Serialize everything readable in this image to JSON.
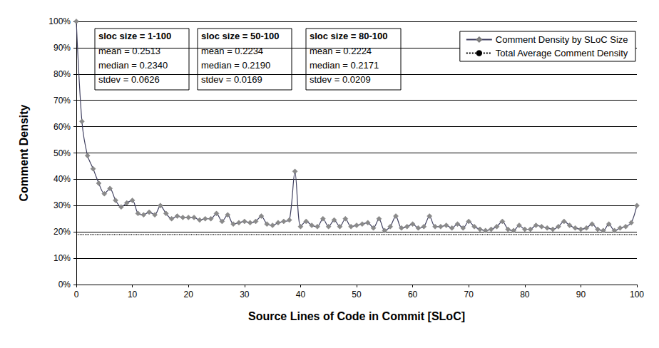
{
  "chart_data": {
    "type": "line",
    "x_label": "Source Lines of Code in Commit [SLoC]",
    "y_label": "Comment Density",
    "x": [
      0,
      1,
      2,
      3,
      4,
      5,
      6,
      7,
      8,
      9,
      10,
      11,
      12,
      13,
      14,
      15,
      16,
      17,
      18,
      19,
      20,
      21,
      22,
      23,
      24,
      25,
      26,
      27,
      28,
      29,
      30,
      31,
      32,
      33,
      34,
      35,
      36,
      37,
      38,
      39,
      40,
      41,
      42,
      43,
      44,
      45,
      46,
      47,
      48,
      49,
      50,
      51,
      52,
      53,
      54,
      55,
      56,
      57,
      58,
      59,
      60,
      61,
      62,
      63,
      64,
      65,
      66,
      67,
      68,
      69,
      70,
      71,
      72,
      73,
      74,
      75,
      76,
      77,
      78,
      79,
      80,
      81,
      82,
      83,
      84,
      85,
      86,
      87,
      88,
      89,
      90,
      91,
      92,
      93,
      94,
      95,
      96,
      97,
      98,
      99,
      100
    ],
    "series": [
      {
        "name": "Comment Density by SLoC Size",
        "color": "#3f3f5f",
        "marker": "diamond",
        "values": [
          100,
          62,
          49,
          44,
          38.5,
          34.5,
          36.5,
          32,
          29.5,
          31,
          32,
          27,
          26.5,
          27.5,
          26.5,
          30,
          27,
          25,
          26,
          25.5,
          25.5,
          25.5,
          24.5,
          25,
          25,
          27,
          24,
          26.5,
          23,
          23.5,
          24,
          23.5,
          24,
          26,
          23,
          22.5,
          23.5,
          24,
          24.5,
          43,
          22,
          24,
          22.5,
          22,
          25,
          22,
          24.5,
          22,
          25,
          22,
          22.5,
          23,
          23.5,
          21.5,
          25,
          20.5,
          22,
          26,
          21.5,
          22,
          23,
          21.5,
          22,
          26,
          22,
          22,
          22.5,
          21.5,
          23,
          21.5,
          24,
          22,
          21,
          20.5,
          21,
          22,
          24,
          21,
          20.5,
          22.5,
          21,
          21,
          22.5,
          22,
          21.5,
          21,
          22,
          24,
          22.5,
          21.5,
          21,
          21.5,
          23,
          21,
          20.5,
          23,
          20.5,
          21.5,
          22,
          23.5,
          30
        ]
      },
      {
        "name": "Total Average Comment Density",
        "color": "#000000",
        "line_style": "dotted",
        "values": [
          19,
          19,
          19,
          19,
          19,
          19,
          19,
          19,
          19,
          19,
          19,
          19,
          19,
          19,
          19,
          19,
          19,
          19,
          19,
          19,
          19,
          19,
          19,
          19,
          19,
          19,
          19,
          19,
          19,
          19,
          19,
          19,
          19,
          19,
          19,
          19,
          19,
          19,
          19,
          19,
          19,
          19,
          19,
          19,
          19,
          19,
          19,
          19,
          19,
          19,
          19,
          19,
          19,
          19,
          19,
          19,
          19,
          19,
          19,
          19,
          19,
          19,
          19,
          19,
          19,
          19,
          19,
          19,
          19,
          19,
          19,
          19,
          19,
          19,
          19,
          19,
          19,
          19,
          19,
          19,
          19,
          19,
          19,
          19,
          19,
          19,
          19,
          19,
          19,
          19,
          19,
          19,
          19,
          19,
          19,
          19,
          19,
          19,
          19,
          19,
          19
        ]
      }
    ],
    "xlim": [
      0,
      100
    ],
    "xticks": [
      0,
      10,
      20,
      30,
      40,
      50,
      60,
      70,
      80,
      90,
      100
    ],
    "ylim": [
      0,
      100
    ],
    "yticks": [
      {
        "value": 0,
        "label": "0%"
      },
      {
        "value": 10,
        "label": "10%"
      },
      {
        "value": 20,
        "label": "20%"
      },
      {
        "value": 30,
        "label": "30%"
      },
      {
        "value": 40,
        "label": "40%"
      },
      {
        "value": 50,
        "label": "50%"
      },
      {
        "value": 60,
        "label": "60%"
      },
      {
        "value": 70,
        "label": "70%"
      },
      {
        "value": 80,
        "label": "80%"
      },
      {
        "value": 90,
        "label": "90%"
      },
      {
        "value": 100,
        "label": "100%"
      }
    ],
    "grid": true,
    "legend": "upper right",
    "annotations": [
      {
        "title": "sloc size = 1-100",
        "lines": [
          "mean = 0.2513",
          "median = 0.2340",
          "stdev = 0.0626"
        ]
      },
      {
        "title": "sloc size = 50-100",
        "lines": [
          "mean = 0.2234",
          "median = 0.2190",
          "stdev = 0.0169"
        ]
      },
      {
        "title": "sloc size = 80-100",
        "lines": [
          "mean = 0.2224",
          "median = 0.2171",
          "stdev = 0.0209"
        ]
      }
    ]
  }
}
